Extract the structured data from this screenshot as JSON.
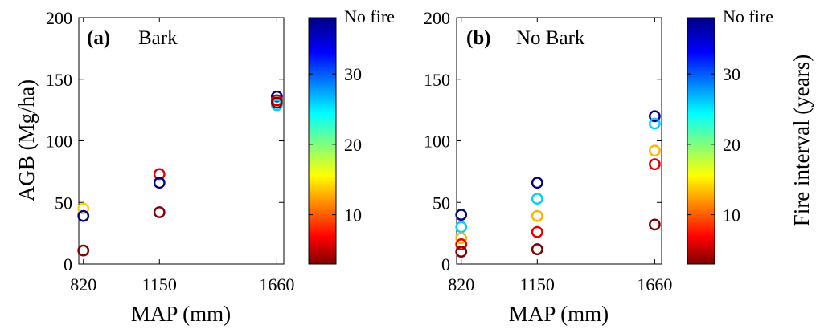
{
  "figure": {
    "ylabel": "AGB (Mg/ha)",
    "colorbar_label": "Fire interval (years)",
    "colorbar_ticks": [
      "10",
      "20",
      "30"
    ],
    "colorbar_top_label": "No fire"
  },
  "chart_data": [
    {
      "type": "scatter",
      "panel_letter": "(a)",
      "title": "Bark",
      "xlabel": "MAP (mm)",
      "ylabel": "AGB (Mg/ha)",
      "x_ticks": [
        820,
        1150,
        1660
      ],
      "y_ticks": [
        0,
        50,
        100,
        150,
        200
      ],
      "xlim": [
        800,
        1690
      ],
      "ylim": [
        0,
        200
      ],
      "color_scale": "jet",
      "color_range": [
        3,
        38
      ],
      "points": [
        {
          "x": 820,
          "y": 45,
          "fire_interval": 14
        },
        {
          "x": 820,
          "y": 39,
          "fire_interval": 38
        },
        {
          "x": 820,
          "y": 11,
          "fire_interval": 3
        },
        {
          "x": 1150,
          "y": 73,
          "fire_interval": 6
        },
        {
          "x": 1150,
          "y": 66,
          "fire_interval": 38
        },
        {
          "x": 1150,
          "y": 42,
          "fire_interval": 3
        },
        {
          "x": 1660,
          "y": 136,
          "fire_interval": 38
        },
        {
          "x": 1660,
          "y": 133,
          "fire_interval": 5
        },
        {
          "x": 1660,
          "y": 129,
          "fire_interval": 26
        },
        {
          "x": 1660,
          "y": 131,
          "fire_interval": 3
        }
      ]
    },
    {
      "type": "scatter",
      "panel_letter": "(b)",
      "title": "No Bark",
      "xlabel": "MAP (mm)",
      "ylabel": "",
      "x_ticks": [
        820,
        1150,
        1660
      ],
      "y_ticks": [
        0,
        50,
        100,
        150,
        200
      ],
      "xlim": [
        800,
        1690
      ],
      "ylim": [
        0,
        200
      ],
      "color_scale": "jet",
      "color_range": [
        3,
        38
      ],
      "points": [
        {
          "x": 820,
          "y": 40,
          "fire_interval": 38
        },
        {
          "x": 820,
          "y": 30,
          "fire_interval": 26
        },
        {
          "x": 820,
          "y": 21,
          "fire_interval": 13
        },
        {
          "x": 820,
          "y": 16,
          "fire_interval": 6
        },
        {
          "x": 820,
          "y": 10,
          "fire_interval": 3
        },
        {
          "x": 1150,
          "y": 66,
          "fire_interval": 38
        },
        {
          "x": 1150,
          "y": 53,
          "fire_interval": 26
        },
        {
          "x": 1150,
          "y": 39,
          "fire_interval": 13
        },
        {
          "x": 1150,
          "y": 26,
          "fire_interval": 6
        },
        {
          "x": 1150,
          "y": 12,
          "fire_interval": 3
        },
        {
          "x": 1660,
          "y": 120,
          "fire_interval": 38
        },
        {
          "x": 1660,
          "y": 114,
          "fire_interval": 26
        },
        {
          "x": 1660,
          "y": 92,
          "fire_interval": 13
        },
        {
          "x": 1660,
          "y": 81,
          "fire_interval": 6
        },
        {
          "x": 1660,
          "y": 32,
          "fire_interval": 3
        }
      ]
    }
  ]
}
